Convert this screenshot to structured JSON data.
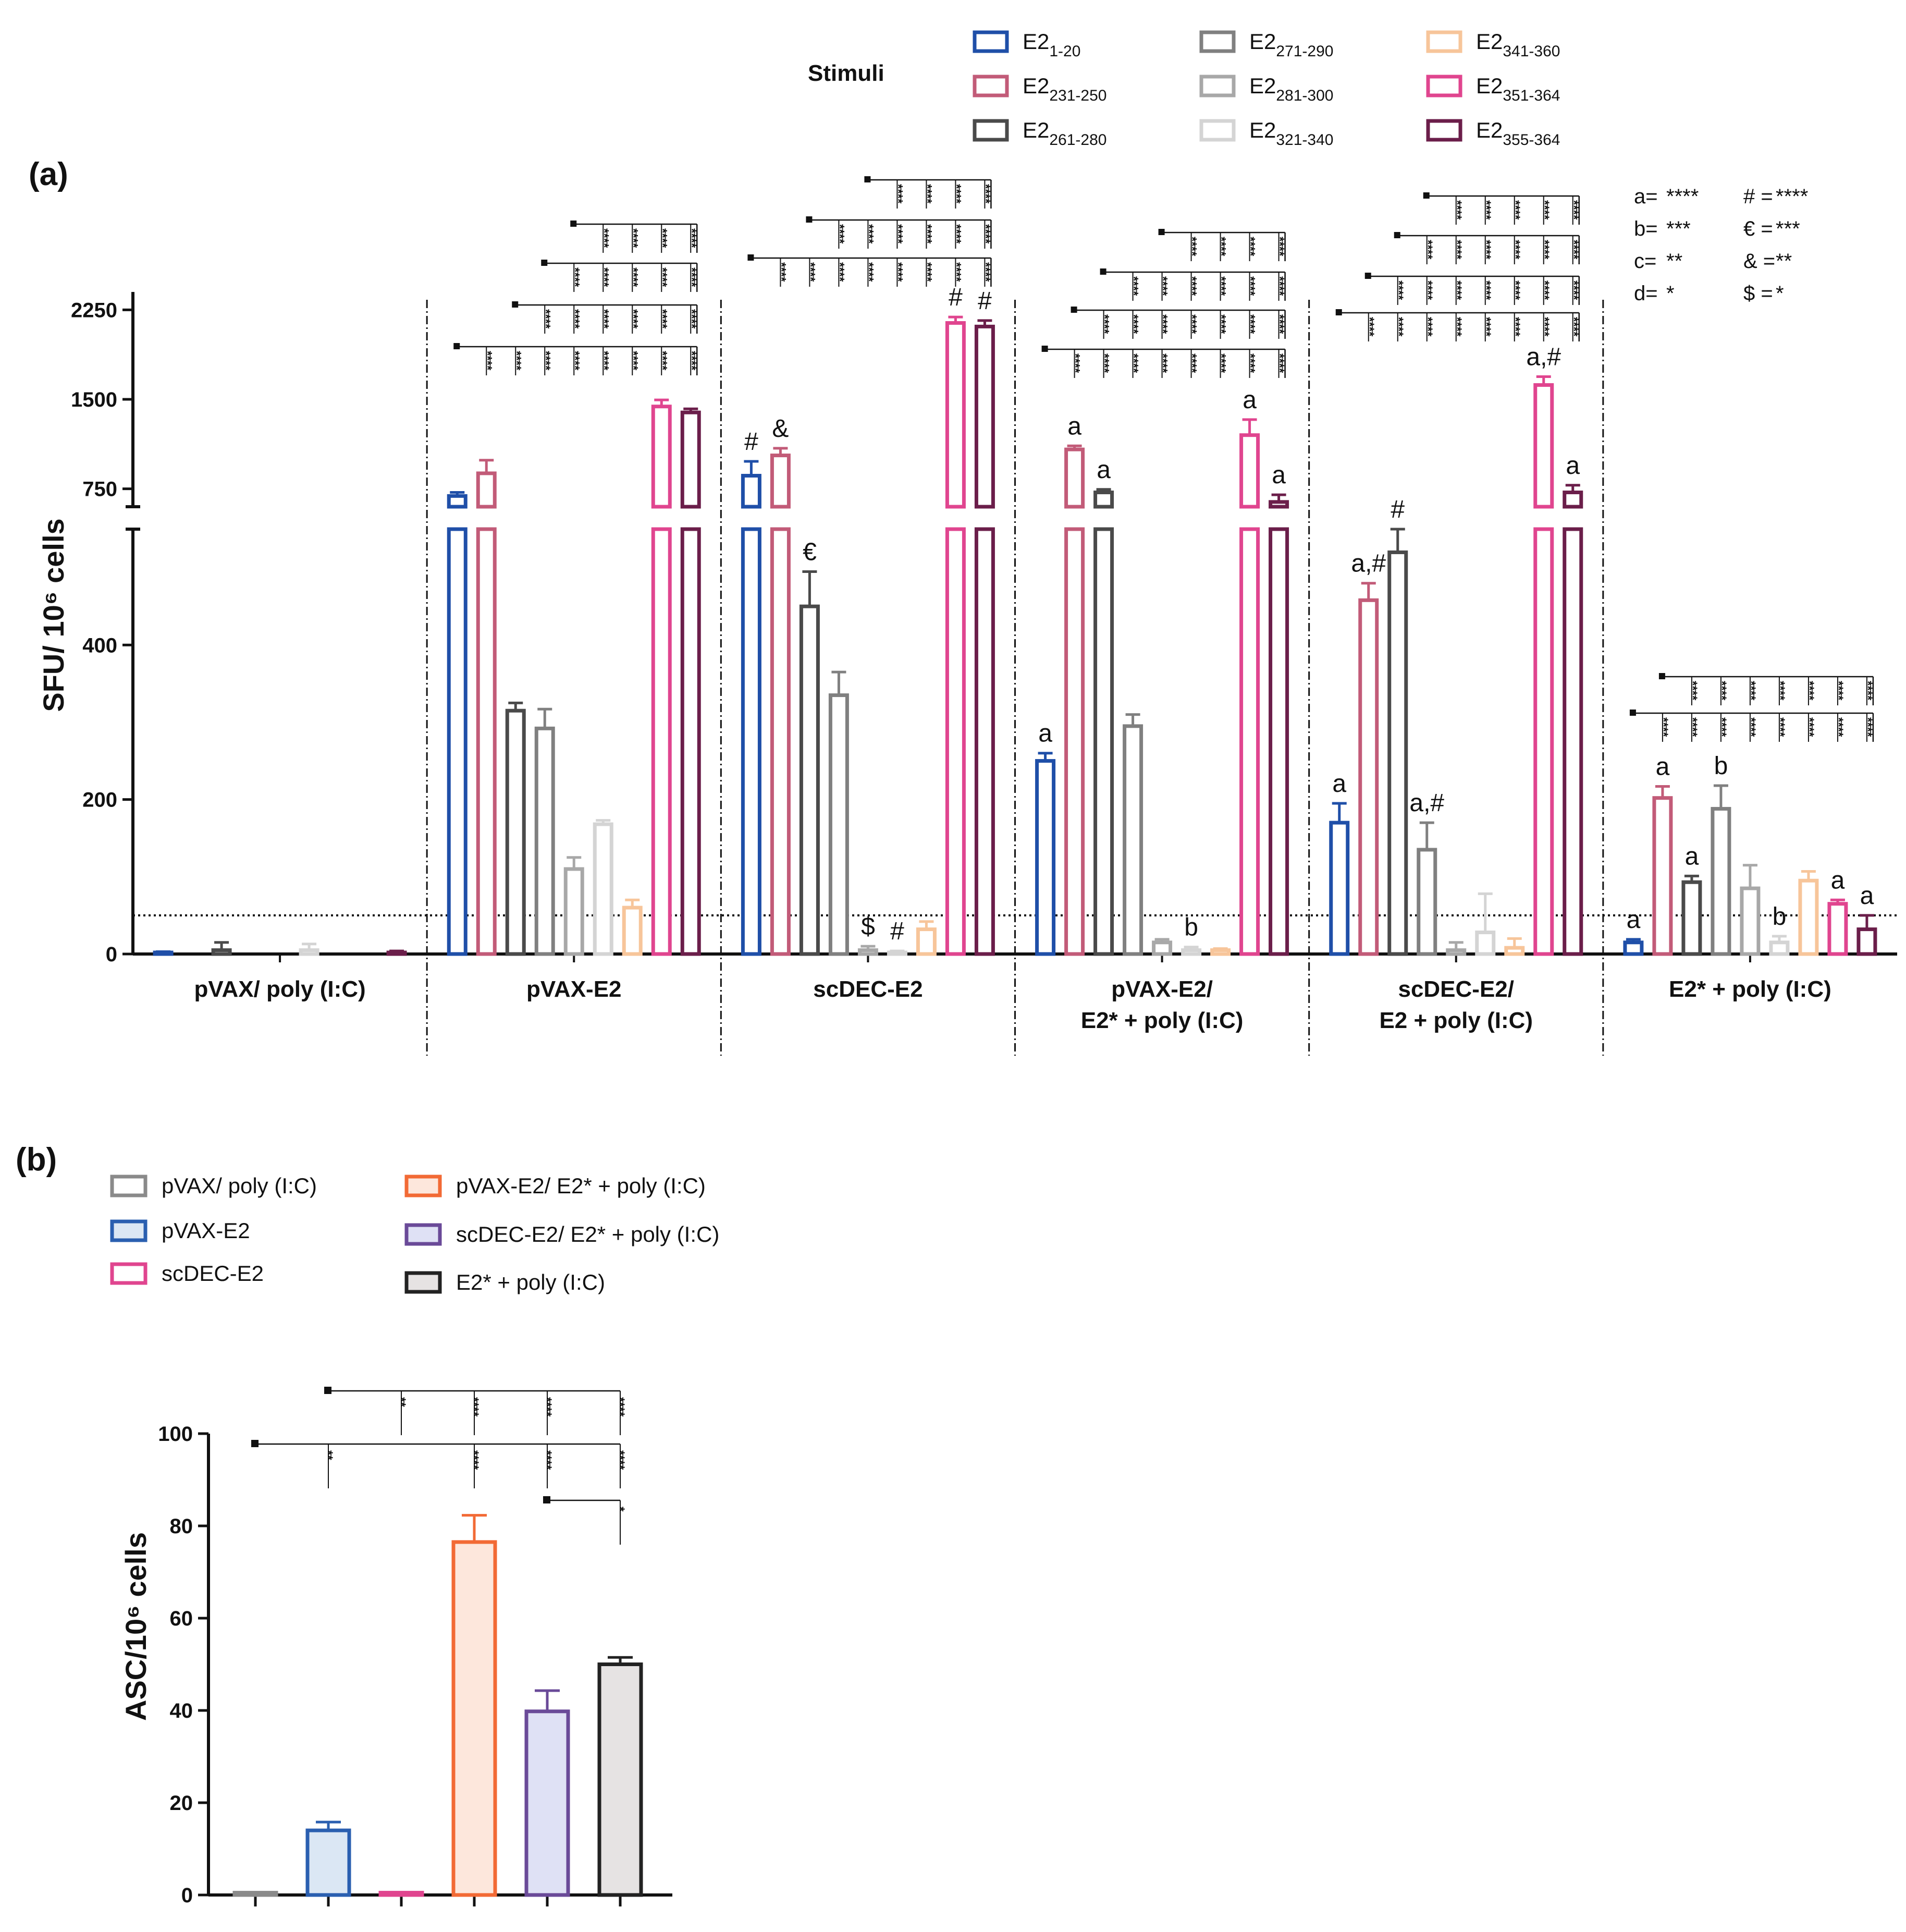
{
  "panel_a": {
    "label": "(a)",
    "legend_title": "Stimuli",
    "significance_key": [
      {
        "sym": "a=",
        "val": "****"
      },
      {
        "sym": "b=",
        "val": "***"
      },
      {
        "sym": "c=",
        "val": "**"
      },
      {
        "sym": "d=",
        "val": "*"
      },
      {
        "sym": "# =",
        "val": "****"
      },
      {
        "sym": "€ =",
        "val": "***"
      },
      {
        "sym": "& =",
        "val": "**"
      },
      {
        "sym": "$ =",
        "val": "*"
      }
    ]
  },
  "panel_b": {
    "label": "(b)"
  },
  "chart_data": [
    {
      "type": "bar",
      "title": "",
      "ylabel": "SFU/ 10⁶ cells",
      "xlabel": "",
      "broken_axis": true,
      "ylim_lower": [
        0,
        550
      ],
      "ylim_upper": [
        600,
        2400
      ],
      "yticks": [
        0,
        200,
        400,
        750,
        1500,
        2250
      ],
      "threshold_line": 50,
      "categories": [
        "pVAX/ poly (I:C)",
        "pVAX-E2",
        "scDEC-E2",
        "pVAX-E2/ E2* + poly (I:C)",
        "scDEC-E2/ E2 + poly (I:C)",
        "E2* + poly (I:C)"
      ],
      "series": [
        {
          "name": "E2 1-20",
          "base": "E2",
          "sub": "1-20",
          "color": "#1f4fa8",
          "values": [
            2,
            690,
            860,
            250,
            170,
            15
          ],
          "errors": [
            1,
            30,
            120,
            10,
            25,
            4
          ],
          "annotations": [
            "",
            "",
            "#",
            "a",
            "a",
            "a"
          ]
        },
        {
          "name": "E2 231-250",
          "base": "E2",
          "sub": "231-250",
          "color": "#c25b78",
          "values": [
            0,
            880,
            1030,
            1080,
            458,
            202
          ],
          "errors": [
            0,
            110,
            60,
            30,
            22,
            15
          ],
          "annotations": [
            "",
            "",
            "&",
            "a",
            "a,#",
            "a"
          ]
        },
        {
          "name": "E2 261-280",
          "base": "E2",
          "sub": "261-280",
          "color": "#4a4a4a",
          "values": [
            5,
            315,
            450,
            720,
            520,
            93
          ],
          "errors": [
            10,
            10,
            45,
            25,
            30,
            8
          ],
          "annotations": [
            "",
            "",
            "€",
            "a",
            "#",
            "a"
          ]
        },
        {
          "name": "E2 271-290",
          "base": "E2",
          "sub": "271-290",
          "color": "#808080",
          "values": [
            0,
            292,
            335,
            295,
            135,
            188
          ],
          "errors": [
            0,
            25,
            30,
            15,
            35,
            30
          ],
          "annotations": [
            "",
            "",
            "",
            "",
            "a,#",
            "b"
          ]
        },
        {
          "name": "E2 281-300",
          "base": "E2",
          "sub": "281-300",
          "color": "#a8a8a8",
          "values": [
            0,
            110,
            5,
            15,
            5,
            85
          ],
          "errors": [
            0,
            15,
            5,
            4,
            10,
            30
          ],
          "annotations": [
            "",
            "",
            "$",
            "",
            "",
            ""
          ]
        },
        {
          "name": "E2 321-340",
          "base": "E2",
          "sub": "321-340",
          "color": "#d4d4d4",
          "values": [
            5,
            168,
            2,
            5,
            28,
            15
          ],
          "errors": [
            8,
            5,
            2,
            4,
            50,
            8
          ],
          "annotations": [
            "",
            "",
            "#",
            "b",
            "",
            "b"
          ]
        },
        {
          "name": "E2 341-360",
          "base": "E2",
          "sub": "341-360",
          "color": "#f7c59a",
          "values": [
            0,
            60,
            32,
            5,
            8,
            95
          ],
          "errors": [
            0,
            10,
            10,
            2,
            12,
            12
          ],
          "annotations": [
            "",
            "",
            "",
            "",
            "",
            ""
          ]
        },
        {
          "name": "E2 351-364",
          "base": "E2",
          "sub": "351-364",
          "color": "#e0458f",
          "values": [
            0,
            1440,
            2140,
            1200,
            1620,
            65
          ],
          "errors": [
            0,
            55,
            50,
            130,
            70,
            5
          ],
          "annotations": [
            "",
            "",
            "#",
            "a",
            "a,#",
            "a"
          ]
        },
        {
          "name": "E2 355-364",
          "base": "E2",
          "sub": "355-364",
          "color": "#6b1e4a",
          "values": [
            2,
            1390,
            2110,
            640,
            720,
            32
          ],
          "errors": [
            2,
            30,
            50,
            60,
            60,
            18
          ],
          "annotations": [
            "",
            "",
            "#",
            "a",
            "a",
            "a"
          ]
        }
      ]
    },
    {
      "type": "bar",
      "title": "",
      "ylabel": "ASC/10⁶ cells",
      "xlabel": "",
      "ylim": [
        0,
        100
      ],
      "yticks": [
        0,
        20,
        40,
        60,
        80,
        100
      ],
      "categories": [
        "pVAX/ poly (I:C)",
        "pVAX-E2",
        "scDEC-E2",
        "pVAX-E2/ E2* + poly (I:C)",
        "scDEC-E2/ E2* + poly (I:C)",
        "E2* + poly (I:C)"
      ],
      "values": [
        0.5,
        14,
        0.5,
        76.5,
        39.8,
        50
      ],
      "errors": [
        0,
        1.8,
        0,
        5.8,
        4.5,
        1.5
      ],
      "colors": [
        "#8a8a8a",
        "#2a5fb0",
        "#e0458f",
        "#f26a35",
        "#6a4a98",
        "#222222"
      ],
      "fills": [
        "#ffffff",
        "#dbe7f4",
        "#ffffff",
        "#fde7dc",
        "#dfe1f5",
        "#e6e3e3"
      ]
    }
  ]
}
